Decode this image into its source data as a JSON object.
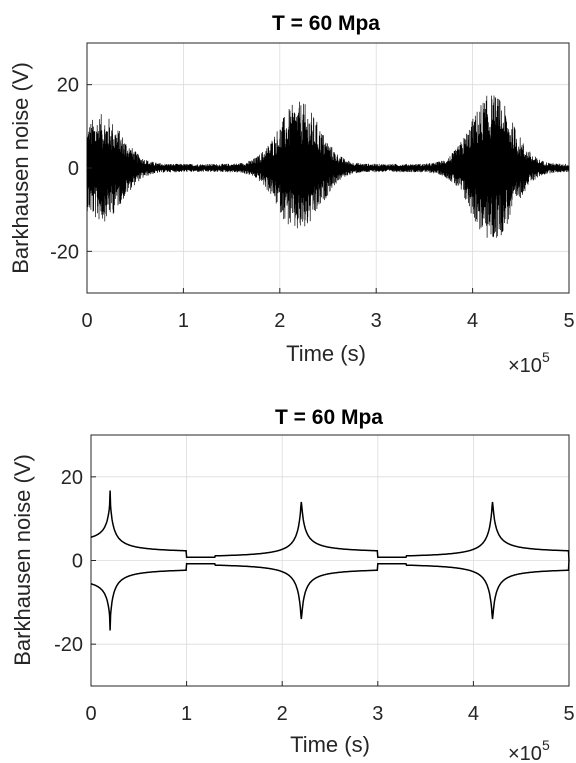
{
  "chart_data": [
    {
      "type": "line",
      "title": "T = 60 Mpa",
      "xlabel": "Time (s)",
      "ylabel": "Barkhausen noise (V)",
      "x_exponent_base": "×10",
      "x_exponent_power": "5",
      "xlim": [
        0,
        500000
      ],
      "ylim": [
        -30,
        30
      ],
      "xticks": [
        0,
        100000,
        200000,
        300000,
        400000,
        500000
      ],
      "xtick_labels": [
        "0",
        "1",
        "2",
        "3",
        "4",
        "5"
      ],
      "yticks": [
        -20,
        0,
        20
      ],
      "ytick_labels": [
        "-20",
        "0",
        "20"
      ],
      "grid": true,
      "series_color": "#000000",
      "signal": "dense oscillating noise burst",
      "burst_peaks": [
        {
          "x": 15000,
          "peak": 13
        },
        {
          "x": 220000,
          "peak": 16
        },
        {
          "x": 420000,
          "peak": 18
        }
      ],
      "baseline_amplitude": 1
    },
    {
      "type": "line",
      "title": "T = 60 Mpa",
      "xlabel": "Time (s)",
      "ylabel": "Barkhausen noise (V)",
      "x_exponent_base": "×10",
      "x_exponent_power": "5",
      "xlim": [
        0,
        500000
      ],
      "ylim": [
        -30,
        30
      ],
      "xticks": [
        0,
        100000,
        200000,
        300000,
        400000,
        500000
      ],
      "xtick_labels": [
        "0",
        "1",
        "2",
        "3",
        "4",
        "5"
      ],
      "yticks": [
        -20,
        0,
        20
      ],
      "ytick_labels": [
        "-20",
        "0",
        "20"
      ],
      "grid": true,
      "series_color": "#000000",
      "signal": "symmetric envelope (upper and lower)",
      "envelope_peaks": [
        {
          "x": 20000,
          "value": 14.5
        },
        {
          "x": 220000,
          "value": 14.5
        },
        {
          "x": 420000,
          "value": 14.5
        }
      ],
      "value_at_start": 4,
      "value_before_drop": 1.8,
      "value_after_drop": 0.6,
      "drop_points": [
        100000,
        300000
      ]
    }
  ]
}
